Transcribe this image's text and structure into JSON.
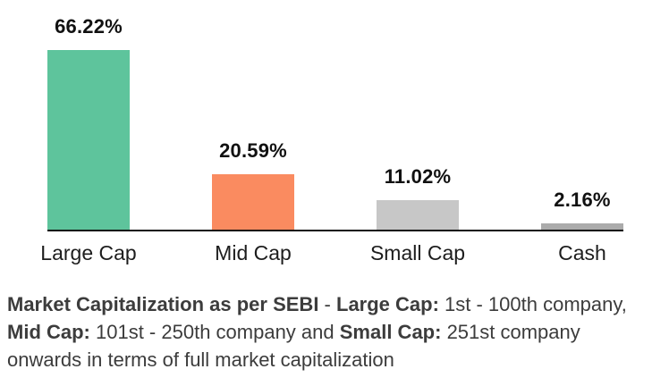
{
  "chart_data": {
    "type": "bar",
    "title": "",
    "categories": [
      "Large Cap",
      "Mid Cap",
      "Small Cap",
      "Cash"
    ],
    "values": [
      66.22,
      20.59,
      11.02,
      2.16
    ],
    "value_labels": [
      "66.22%",
      "20.59%",
      "11.02%",
      "2.16%"
    ],
    "colors": [
      "#5EC49C",
      "#FA8B60",
      "#C7C7C7",
      "#ABABAB"
    ],
    "axis_color": "#111111",
    "xlabel": "",
    "ylabel": "",
    "ylim": [
      0,
      80
    ],
    "grid": false,
    "legend": "none",
    "value_labels_position": "above-bars"
  },
  "footnote": {
    "segments": [
      {
        "text": "Market Capitalization as per SEBI",
        "bold": true
      },
      {
        "text": " - ",
        "bold": false
      },
      {
        "text": "Large Cap:",
        "bold": true
      },
      {
        "text": " 1st - 100th company, ",
        "bold": false
      },
      {
        "text": "Mid Cap:",
        "bold": true
      },
      {
        "text": " 101st - 250th company and ",
        "bold": false
      },
      {
        "text": "Small Cap:",
        "bold": true
      },
      {
        "text": " 251st company onwards in terms of full market capitalization",
        "bold": false
      }
    ]
  }
}
